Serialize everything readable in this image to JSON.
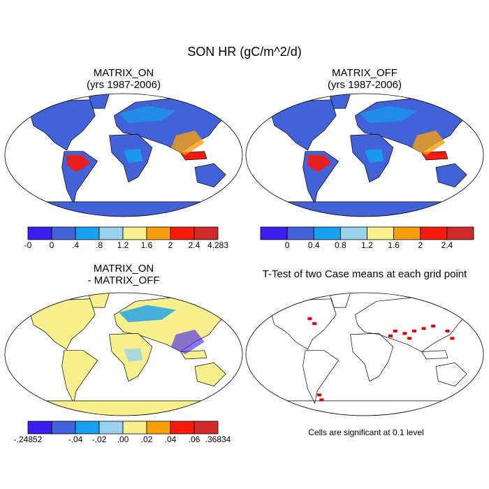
{
  "title": "SON HR (gC/m^2/d)",
  "palette": [
    "#3a1ef0",
    "#4262da",
    "#16a0ee",
    "#98d2ee",
    "#f8f08c",
    "#f8a00c",
    "#f81a0a",
    "#d02a2a"
  ],
  "panels": [
    {
      "title": [
        "MATRIX_ON",
        "(yrs 1987-2006)"
      ],
      "colorbar": [
        "-0",
        "0",
        ".4",
        ".8",
        "1.2",
        "1.6",
        "2",
        "2.4",
        "4.283"
      ]
    },
    {
      "title": [
        "MATRIX_OFF",
        "(yrs 1987-2006)"
      ],
      "colorbar": [
        null,
        "0",
        "0.4",
        "0.8",
        "1.2",
        "1.6",
        "2",
        "2.4",
        null
      ]
    },
    {
      "title": [
        "MATRIX_ON",
        "- MATRIX_OFF"
      ],
      "colorbar": [
        "-.24852",
        null,
        "-.04",
        "-.02",
        ".00",
        ".02",
        ".04",
        ".06",
        ".36834"
      ]
    },
    {
      "title": [
        "T-Test of two Case means at each grid point"
      ],
      "note": "Cells are significant at 0.1 level"
    }
  ]
}
